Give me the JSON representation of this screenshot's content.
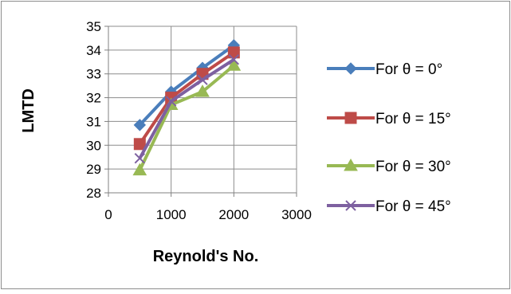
{
  "chart_data": {
    "type": "scatter",
    "title": "",
    "xlabel": "Reynold's No.",
    "ylabel": "LMTD",
    "xlim": [
      0,
      3000
    ],
    "ylim": [
      28,
      35
    ],
    "x_ticks": [
      "0",
      "1000",
      "2000",
      "3000"
    ],
    "y_ticks": [
      "28",
      "29",
      "30",
      "31",
      "32",
      "33",
      "34",
      "35"
    ],
    "grid": "vertical and horizontal major gridlines",
    "legend_position": "right",
    "series": [
      {
        "name": "For θ = 0°",
        "color": "#4A7EBB",
        "marker": "diamond",
        "x": [
          500,
          1000,
          1500,
          2000
        ],
        "y": [
          30.85,
          32.25,
          33.25,
          34.2
        ]
      },
      {
        "name": "For θ = 15°",
        "color": "#BE4B48",
        "marker": "square",
        "x": [
          500,
          1000,
          1500,
          2000
        ],
        "y": [
          30.05,
          32.0,
          33.0,
          33.9
        ]
      },
      {
        "name": "For θ = 30°",
        "color": "#98B954",
        "marker": "triangle",
        "x": [
          500,
          1000,
          1500,
          2000
        ],
        "y": [
          28.95,
          31.7,
          32.25,
          33.35
        ]
      },
      {
        "name": "For θ = 45°",
        "color": "#7D60A0",
        "marker": "x",
        "x": [
          500,
          1000,
          1500,
          2000
        ],
        "y": [
          29.45,
          31.85,
          32.75,
          33.6
        ]
      }
    ]
  }
}
